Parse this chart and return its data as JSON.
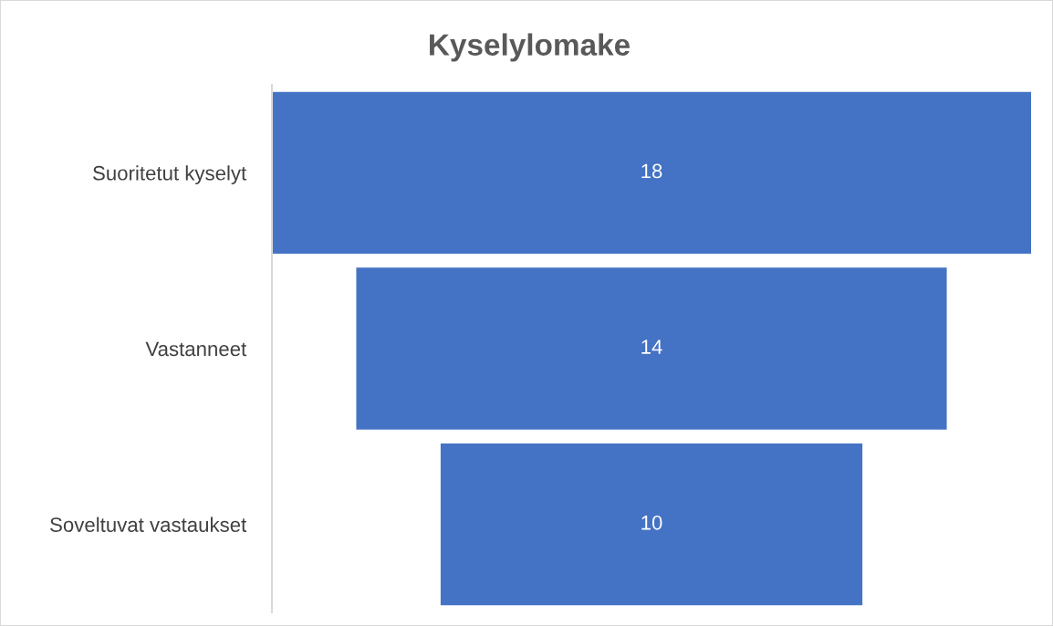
{
  "chart_data": {
    "type": "other",
    "title": "Kyselylomake",
    "categories": [
      "Suoritetut kyselyt",
      "Vastanneet",
      "Soveltuvat vastaukset"
    ],
    "values": [
      18,
      14,
      10
    ],
    "color": "#4472c4",
    "data_labels": true
  }
}
